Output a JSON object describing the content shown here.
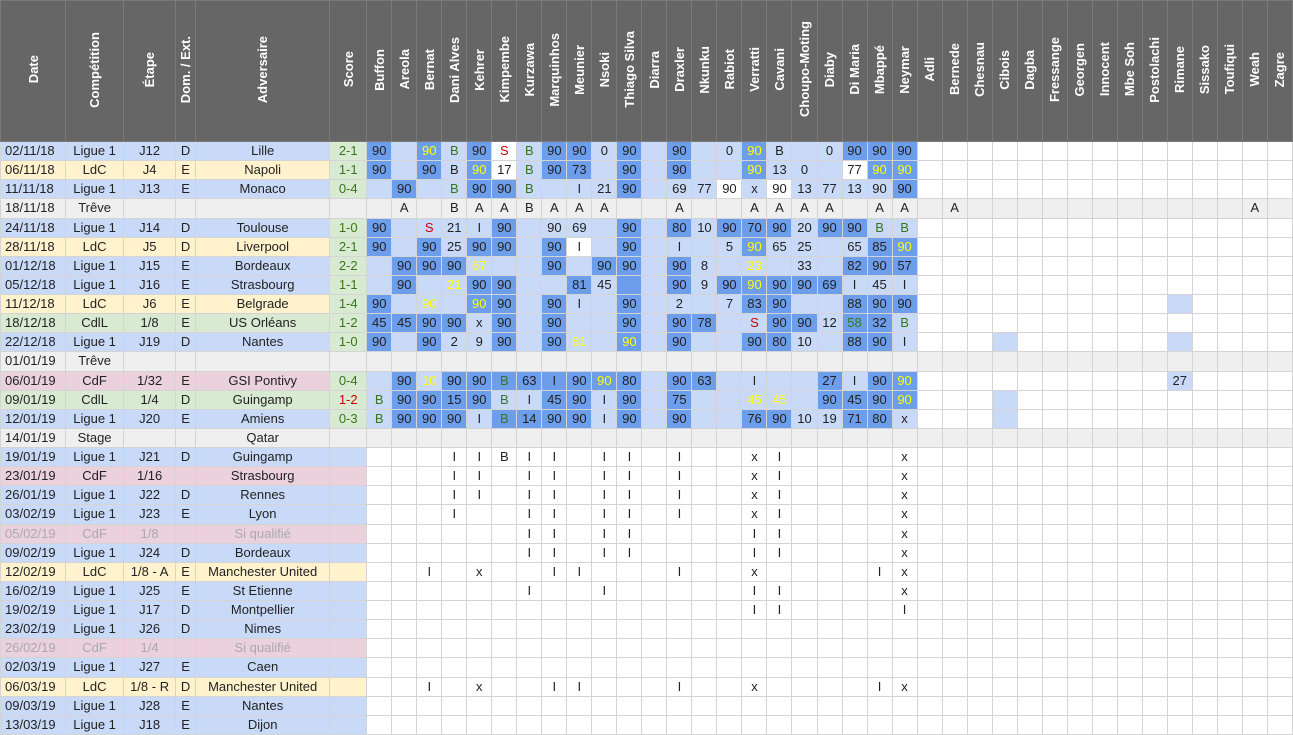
{
  "sheet": {
    "header_fixed": [
      "Date",
      "Compétition",
      "Étape",
      "Dom. / Ext.",
      "Adversaire",
      "Score"
    ],
    "players": [
      "Buffon",
      "Areola",
      "Bernat",
      "Dani Alves",
      "Kehrer",
      "Kimpembe",
      "Kurzawa",
      "Marquinhos",
      "Meunier",
      "Nsoki",
      "Thiago Silva",
      "Diarra",
      "Draxler",
      "Nkunku",
      "Rabiot",
      "Verratti",
      "Cavani",
      "Choupo-Moting",
      "Diaby",
      "Di Maria",
      "Mbappé",
      "Neymar",
      "Adli",
      "Bernede",
      "Chesnau",
      "Cibois",
      "Dagba",
      "Fressange",
      "Georgen",
      "Innocent",
      "Mbe Soh",
      "Postolachi",
      "Rimane",
      "Sissako",
      "Toufiqui",
      "Weah",
      "Zagre"
    ],
    "rows": [
      {
        "date": "02/11/18",
        "comp": "Ligue 1",
        "etape": "J12",
        "lieu": "D",
        "adv": "Lille",
        "score": "2-1",
        "c": [
          "90",
          "",
          "90",
          "B",
          "90",
          "S",
          "B",
          "90",
          "90",
          "0",
          "90",
          "",
          "90",
          "",
          "0",
          "90",
          "B",
          "",
          "0",
          "90",
          "90",
          "90"
        ]
      },
      {
        "date": "06/11/18",
        "comp": "LdC",
        "etape": "J4",
        "lieu": "E",
        "adv": "Napoli",
        "score": "1-1",
        "c": [
          "90",
          "",
          "90",
          "B",
          "90",
          "17",
          "B",
          "90",
          "73",
          "",
          "90",
          "",
          "90",
          "",
          "",
          "90",
          "13",
          "0",
          "",
          "77",
          "90",
          "90"
        ]
      },
      {
        "date": "11/11/18",
        "comp": "Ligue 1",
        "etape": "J13",
        "lieu": "E",
        "adv": "Monaco",
        "score": "0-4",
        "c": [
          "",
          "90",
          "",
          "B",
          "90",
          "90",
          "B",
          "",
          "I",
          "21",
          "90",
          "",
          "69",
          "77",
          "90",
          "x",
          "90",
          "13",
          "77",
          "13",
          "90",
          "90"
        ]
      },
      {
        "date": "18/11/18",
        "comp": "Trêve",
        "etape": "",
        "lieu": "",
        "adv": "",
        "score": "",
        "c": [
          "",
          "A",
          "",
          "B",
          "A",
          "A",
          "B",
          "A",
          "A",
          "A",
          "",
          "",
          "A",
          "",
          "",
          "A",
          "A",
          "A",
          "A",
          "",
          "A",
          "A",
          "",
          "A",
          "",
          "",
          "",
          "",
          "",
          "",
          "",
          "",
          "",
          "",
          "",
          "A",
          ""
        ]
      },
      {
        "date": "24/11/18",
        "comp": "Ligue 1",
        "etape": "J14",
        "lieu": "D",
        "adv": "Toulouse",
        "score": "1-0",
        "c": [
          "90",
          "",
          "S",
          "21",
          "I",
          "90",
          "",
          "90",
          "69",
          "",
          "90",
          "",
          "80",
          "10",
          "90",
          "70",
          "90",
          "20",
          "90",
          "90",
          "B",
          "B"
        ]
      },
      {
        "date": "28/11/18",
        "comp": "LdC",
        "etape": "J5",
        "lieu": "D",
        "adv": "Liverpool",
        "score": "2-1",
        "c": [
          "90",
          "",
          "90",
          "25",
          "90",
          "90",
          "",
          "90",
          "I",
          "",
          "90",
          "",
          "I",
          "",
          "5",
          "90",
          "65",
          "25",
          "",
          "65",
          "85",
          "90"
        ]
      },
      {
        "date": "01/12/18",
        "comp": "Ligue 1",
        "etape": "J15",
        "lieu": "E",
        "adv": "Bordeaux",
        "score": "2-2",
        "c": [
          "",
          "90",
          "90",
          "90",
          "67",
          "",
          "",
          "90",
          "",
          "90",
          "90",
          "",
          "90",
          "8",
          "",
          "23",
          "",
          "33",
          "",
          "82",
          "90",
          "57"
        ]
      },
      {
        "date": "05/12/18",
        "comp": "Ligue 1",
        "etape": "J16",
        "lieu": "E",
        "adv": "Strasbourg",
        "score": "1-1",
        "c": [
          "",
          "90",
          "",
          "21",
          "90",
          "90",
          "",
          "",
          "81",
          "45",
          "",
          "",
          "90",
          "9",
          "90",
          "90",
          "90",
          "90",
          "69",
          "I",
          "45",
          "I"
        ]
      },
      {
        "date": "11/12/18",
        "comp": "LdC",
        "etape": "J6",
        "lieu": "E",
        "adv": "Belgrade",
        "score": "1-4",
        "c": [
          "90",
          "",
          "90",
          "",
          "90",
          "90",
          "",
          "90",
          "I",
          "",
          "90",
          "",
          "2",
          "",
          "7",
          "83",
          "90",
          "",
          "",
          "88",
          "90",
          "90"
        ]
      },
      {
        "date": "18/12/18",
        "comp": "CdlL",
        "etape": "1/8",
        "lieu": "E",
        "adv": "US Orléans",
        "score": "1-2",
        "c": [
          "45",
          "45",
          "90",
          "90",
          "x",
          "90",
          "",
          "90",
          "",
          "",
          "90",
          "",
          "90",
          "78",
          "",
          "S",
          "90",
          "90",
          "12",
          "58",
          "32",
          "B"
        ]
      },
      {
        "date": "22/12/18",
        "comp": "Ligue 1",
        "etape": "J19",
        "lieu": "D",
        "adv": "Nantes",
        "score": "1-0",
        "c": [
          "90",
          "",
          "90",
          "2",
          "9",
          "90",
          "",
          "90",
          "81",
          "",
          "90",
          "",
          "90",
          "",
          "",
          "90",
          "80",
          "10",
          "",
          "88",
          "90",
          "I"
        ]
      },
      {
        "date": "01/01/19",
        "comp": "Trêve",
        "etape": "",
        "lieu": "",
        "adv": "",
        "score": "",
        "c": []
      },
      {
        "date": "06/01/19",
        "comp": "CdF",
        "etape": "1/32",
        "lieu": "E",
        "adv": "GSI Pontivy",
        "score": "0-4",
        "c": [
          "",
          "90",
          "10",
          "90",
          "90",
          "B",
          "63",
          "I",
          "90",
          "90",
          "80",
          "",
          "90",
          "63",
          "",
          "I",
          "",
          "",
          "27",
          "I",
          "90",
          "90",
          "",
          "",
          "",
          "",
          "",
          "",
          "",
          "",
          "",
          "",
          "27"
        ]
      },
      {
        "date": "09/01/19",
        "comp": "CdlL",
        "etape": "1/4",
        "lieu": "D",
        "adv": "Guingamp",
        "score": "1-2",
        "c": [
          "B",
          "90",
          "90",
          "15",
          "90",
          "B",
          "I",
          "45",
          "90",
          "I",
          "90",
          "",
          "75",
          "",
          "",
          "45",
          "45",
          "",
          "90",
          "45",
          "90",
          "90"
        ]
      },
      {
        "date": "12/01/19",
        "comp": "Ligue 1",
        "etape": "J20",
        "lieu": "E",
        "adv": "Amiens",
        "score": "0-3",
        "c": [
          "B",
          "90",
          "90",
          "90",
          "I",
          "B",
          "14",
          "90",
          "90",
          "I",
          "90",
          "",
          "90",
          "",
          "",
          "76",
          "90",
          "10",
          "19",
          "71",
          "80",
          "x"
        ]
      },
      {
        "date": "14/01/19",
        "comp": "Stage",
        "etape": "",
        "lieu": "",
        "adv": "Qatar",
        "score": "",
        "c": []
      },
      {
        "date": "19/01/19",
        "comp": "Ligue 1",
        "etape": "J21",
        "lieu": "D",
        "adv": "Guingamp",
        "score": "",
        "c": [
          "",
          "",
          "",
          "I",
          "I",
          "B",
          "I",
          "I",
          "",
          "I",
          "I",
          "",
          "I",
          "",
          "",
          "x",
          "I",
          "",
          "",
          "",
          "",
          "x"
        ]
      },
      {
        "date": "23/01/19",
        "comp": "CdF",
        "etape": "1/16",
        "lieu": "",
        "adv": "Strasbourg",
        "score": "",
        "c": [
          "",
          "",
          "",
          "I",
          "I",
          "",
          "I",
          "I",
          "",
          "I",
          "I",
          "",
          "I",
          "",
          "",
          "x",
          "I",
          "",
          "",
          "",
          "",
          "x"
        ]
      },
      {
        "date": "26/01/19",
        "comp": "Ligue 1",
        "etape": "J22",
        "lieu": "D",
        "adv": "Rennes",
        "score": "",
        "c": [
          "",
          "",
          "",
          "I",
          "I",
          "",
          "I",
          "I",
          "",
          "I",
          "I",
          "",
          "I",
          "",
          "",
          "x",
          "I",
          "",
          "",
          "",
          "",
          "x"
        ]
      },
      {
        "date": "03/02/19",
        "comp": "Ligue 1",
        "etape": "J23",
        "lieu": "E",
        "adv": "Lyon",
        "score": "",
        "c": [
          "",
          "",
          "",
          "I",
          "",
          "",
          "I",
          "I",
          "",
          "I",
          "I",
          "",
          "I",
          "",
          "",
          "x",
          "I",
          "",
          "",
          "",
          "",
          "x"
        ]
      },
      {
        "date": "05/02/19",
        "comp": "CdF",
        "etape": "1/8",
        "lieu": "",
        "adv": "Si qualifié",
        "score": "",
        "c": [
          "",
          "",
          "",
          "",
          "",
          "",
          "I",
          "I",
          "",
          "I",
          "I",
          "",
          "",
          "",
          "",
          "I",
          "I",
          "",
          "",
          "",
          "",
          "x"
        ]
      },
      {
        "date": "09/02/19",
        "comp": "Ligue 1",
        "etape": "J24",
        "lieu": "D",
        "adv": "Bordeaux",
        "score": "",
        "c": [
          "",
          "",
          "",
          "",
          "",
          "",
          "I",
          "I",
          "",
          "I",
          "I",
          "",
          "",
          "",
          "",
          "I",
          "I",
          "",
          "",
          "",
          "",
          "x"
        ]
      },
      {
        "date": "12/02/19",
        "comp": "LdC",
        "etape": "1/8 - A",
        "lieu": "E",
        "adv": "Manchester United",
        "score": "",
        "c": [
          "",
          "",
          "I",
          "",
          "x",
          "",
          "",
          "I",
          "I",
          "",
          "",
          "",
          "I",
          "",
          "",
          "x",
          "",
          "",
          "",
          "",
          "I",
          "x"
        ]
      },
      {
        "date": "16/02/19",
        "comp": "Ligue 1",
        "etape": "J25",
        "lieu": "E",
        "adv": "St Etienne",
        "score": "",
        "c": [
          "",
          "",
          "",
          "",
          "",
          "",
          "I",
          "",
          "",
          "I",
          "",
          "",
          "",
          "",
          "",
          "I",
          "I",
          "",
          "",
          "",
          "",
          "x"
        ]
      },
      {
        "date": "19/02/19",
        "comp": "Ligue 1",
        "etape": "J17",
        "lieu": "D",
        "adv": "Montpellier",
        "score": "",
        "c": [
          "",
          "",
          "",
          "",
          "",
          "",
          "",
          "",
          "",
          "",
          "",
          "",
          "",
          "",
          "",
          "I",
          "I",
          "",
          "",
          "",
          "",
          "I"
        ]
      },
      {
        "date": "23/02/19",
        "comp": "Ligue 1",
        "etape": "J26",
        "lieu": "D",
        "adv": "Nimes",
        "score": "",
        "c": []
      },
      {
        "date": "26/02/19",
        "comp": "CdF",
        "etape": "1/4",
        "lieu": "",
        "adv": "Si qualifié",
        "score": "",
        "c": []
      },
      {
        "date": "02/03/19",
        "comp": "Ligue 1",
        "etape": "J27",
        "lieu": "E",
        "adv": "Caen",
        "score": "",
        "c": []
      },
      {
        "date": "06/03/19",
        "comp": "LdC",
        "etape": "1/8 - R",
        "lieu": "D",
        "adv": "Manchester United",
        "score": "",
        "c": [
          "",
          "",
          "I",
          "",
          "x",
          "",
          "",
          "I",
          "I",
          "",
          "",
          "",
          "I",
          "",
          "",
          "x",
          "",
          "",
          "",
          "",
          "I",
          "x"
        ]
      },
      {
        "date": "09/03/19",
        "comp": "Ligue 1",
        "etape": "J28",
        "lieu": "E",
        "adv": "Nantes",
        "score": "",
        "c": []
      },
      {
        "date": "13/03/19",
        "comp": "Ligue 1",
        "etape": "J18",
        "lieu": "E",
        "adv": "Dijon",
        "score": "",
        "c": []
      }
    ]
  },
  "colors": {
    "header_bg": "#666666",
    "full_match": "#6d9eeb",
    "light_blue": "#c9daf8",
    "ligue1": "#c9daf8",
    "ldc": "#fff2cc",
    "cdf": "#ead1dc",
    "cdll": "#d9ead3",
    "treve": "#efefef",
    "score_green": "#d9ead3",
    "text_yellow": "#ffff00",
    "text_red": "#cc0000",
    "text_green": "#38761d",
    "grey_text": "#aaaaaa"
  }
}
